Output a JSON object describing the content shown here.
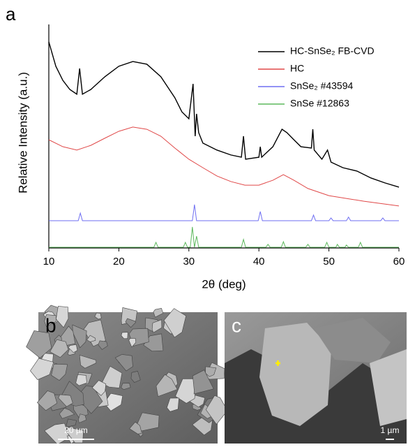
{
  "chart_data": {
    "type": "line",
    "panel_label": "a",
    "x_label": "2θ (deg)",
    "y_label": "Relative Intensity (a.u.)",
    "xlim": [
      10,
      60
    ],
    "xticks": [
      10,
      20,
      30,
      40,
      50,
      60
    ],
    "ylim": [
      0,
      100
    ],
    "legend": "upper right",
    "grid": false,
    "series": [
      {
        "name": "HC-SnSe₂ FB-CVD",
        "color": "#000000",
        "x": [
          10,
          11,
          12,
          13,
          14,
          14.4,
          14.8,
          16,
          18,
          20,
          22,
          24,
          26,
          28,
          29,
          30,
          30.6,
          30.9,
          31.1,
          31.4,
          32,
          34,
          36,
          37.5,
          37.8,
          38.1,
          40,
          40.2,
          40.4,
          42,
          43.3,
          44,
          45,
          46,
          47.5,
          47.7,
          47.9,
          49,
          49.8,
          50.3,
          52,
          54,
          56,
          58,
          60
        ],
        "values": [
          92.2,
          81.3,
          75,
          70.9,
          68.8,
          80.3,
          68.8,
          70.9,
          76.6,
          81.3,
          83.4,
          82.2,
          76.6,
          67.2,
          60.9,
          57.8,
          73.4,
          50,
          60,
          51.6,
          46.9,
          43.8,
          41.6,
          40.6,
          50,
          39.7,
          40.6,
          45.3,
          40.6,
          45.3,
          53.1,
          51.6,
          48.4,
          45.3,
          44.7,
          53.1,
          43.8,
          39.7,
          43.8,
          38.4,
          35.9,
          34.4,
          31.3,
          29.1,
          27.2
        ]
      },
      {
        "name": "HC",
        "color": "#e04848",
        "x": [
          10,
          12,
          14,
          16,
          18,
          20,
          22,
          24,
          26,
          28,
          30,
          32,
          34,
          36,
          38,
          40,
          42,
          43.5,
          45,
          47,
          50,
          55,
          60
        ],
        "values": [
          48.4,
          45.3,
          43.8,
          45.9,
          49.1,
          52.2,
          54.1,
          53.1,
          50,
          44.7,
          39.7,
          35.9,
          32.2,
          29.7,
          28.1,
          28.1,
          30.3,
          32.8,
          30.3,
          26.6,
          23.4,
          20.9,
          18.8
        ]
      },
      {
        "name": "SnSe₂ #43594",
        "color": "#6f6ff2",
        "x": [
          10,
          14.2,
          14.5,
          14.8,
          30.5,
          30.8,
          31.1,
          39.9,
          40.2,
          40.5,
          47.5,
          47.8,
          48.1,
          50,
          50.3,
          50.6,
          52.5,
          52.8,
          53.1,
          57.4,
          57.7,
          58,
          60
        ],
        "values": [
          12.2,
          12.2,
          15.6,
          12.2,
          12.2,
          19.4,
          12.2,
          12.2,
          16.3,
          12.2,
          12.2,
          14.7,
          12.2,
          12.2,
          13.4,
          12.2,
          12.2,
          13.8,
          12.2,
          12.2,
          13.4,
          12.2,
          12.2
        ]
      },
      {
        "name": "SnSe #12863",
        "color": "#5cb85c",
        "x": [
          10,
          25,
          25.3,
          25.6,
          29.2,
          29.5,
          29.8,
          30.2,
          30.5,
          30.8,
          31.1,
          31.4,
          37.5,
          37.8,
          38.1,
          41,
          41.3,
          41.6,
          43.2,
          43.5,
          43.8,
          46.7,
          47,
          47.3,
          49.4,
          49.7,
          50,
          51,
          51.2,
          51.5,
          52.3,
          52.5,
          52.8,
          54.2,
          54.5,
          54.8,
          60
        ],
        "values": [
          0.3,
          0.3,
          2.5,
          0.3,
          0.3,
          2.5,
          0.3,
          0.3,
          9.4,
          0.3,
          5.3,
          0.3,
          0.3,
          3.8,
          0.3,
          0.3,
          1.6,
          0.3,
          0.3,
          2.8,
          0.3,
          0.3,
          1.6,
          0.3,
          0.3,
          2.5,
          0.3,
          0.3,
          1.6,
          0.3,
          0.3,
          1.3,
          0.3,
          0.3,
          2.5,
          0.3,
          0.3
        ]
      }
    ]
  },
  "images": [
    {
      "label": "b",
      "scale_bar": "20 µm"
    },
    {
      "label": "c",
      "scale_bar": "1 µm"
    }
  ]
}
